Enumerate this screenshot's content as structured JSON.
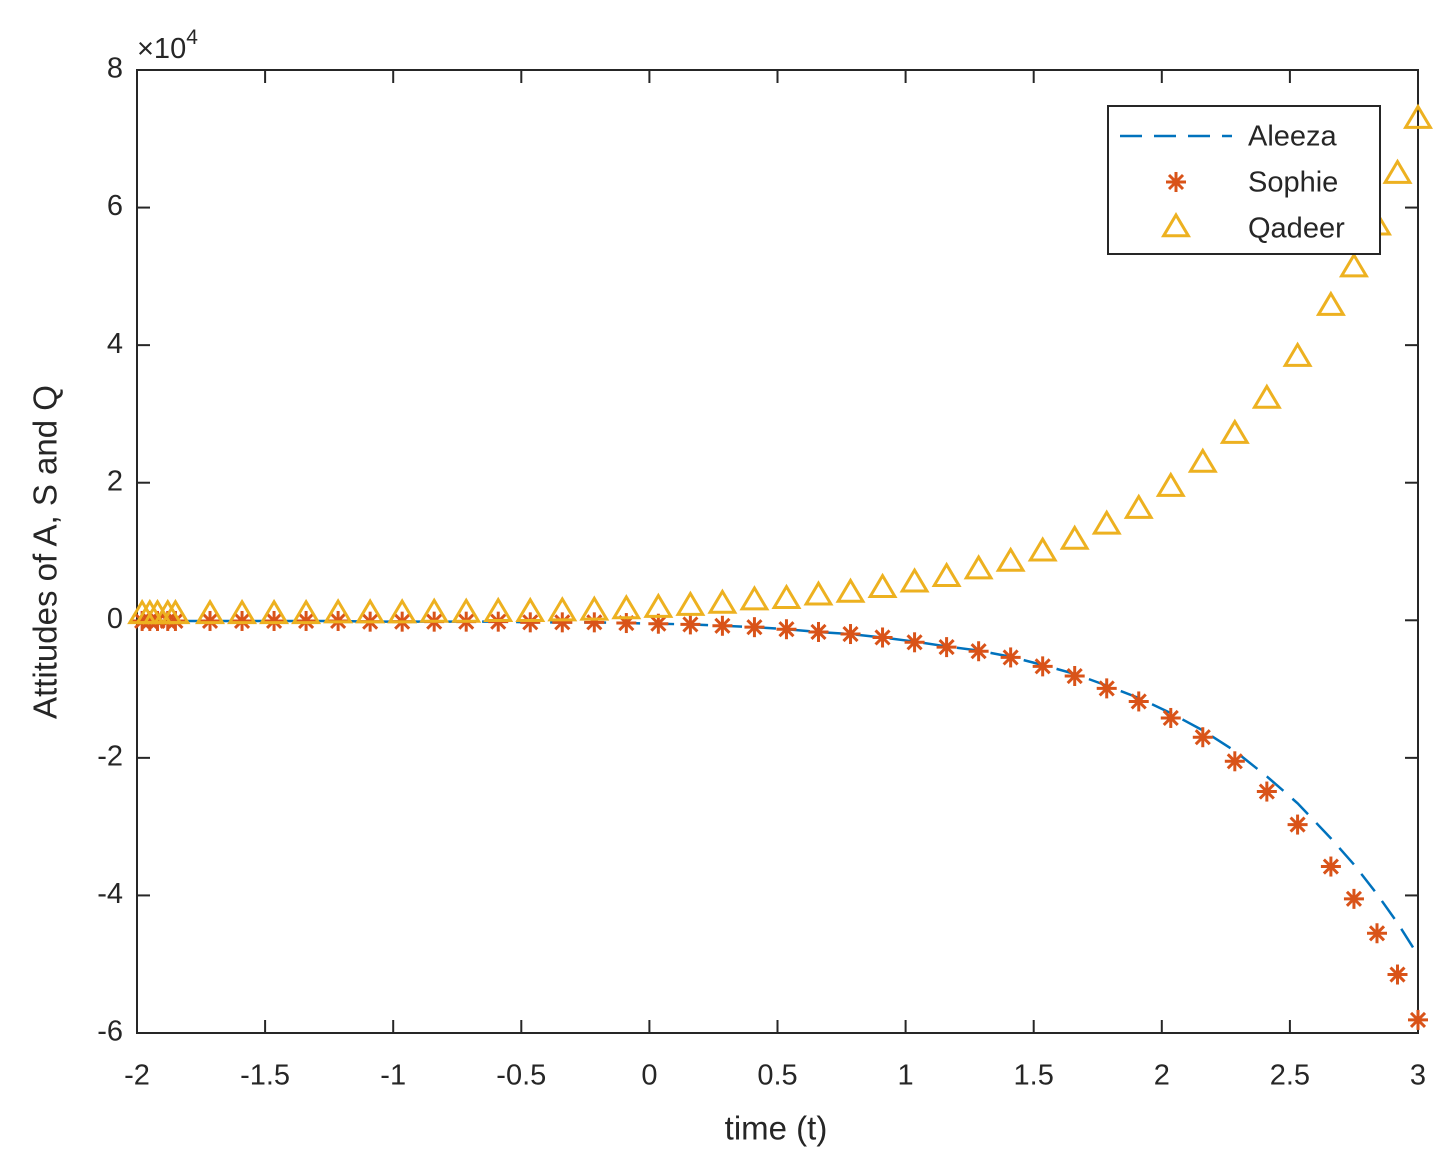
{
  "chart_data": {
    "type": "line",
    "xlabel": "time (t)",
    "ylabel": "Attitudes of A, S and Q",
    "y_multiplier": {
      "base": "×10",
      "exponent": "4"
    },
    "x": [
      -1.98,
      -1.95,
      -1.92,
      -1.88,
      -1.85,
      -1.715,
      -1.59,
      -1.465,
      -1.34,
      -1.215,
      -1.09,
      -0.965,
      -0.84,
      -0.715,
      -0.59,
      -0.465,
      -0.34,
      -0.215,
      -0.09,
      0.035,
      0.16,
      0.285,
      0.41,
      0.535,
      0.66,
      0.785,
      0.91,
      1.035,
      1.16,
      1.285,
      1.41,
      1.535,
      1.66,
      1.785,
      1.91,
      2.035,
      2.16,
      2.285,
      2.41,
      2.53,
      2.66,
      2.75,
      2.84,
      2.92,
      3.0
    ],
    "series": [
      {
        "name": "Aleeza",
        "color": "#0072BD",
        "marker": "none",
        "line_style": "dashed",
        "values": [
          -0.01,
          -0.01,
          -0.01,
          -0.01,
          -0.01,
          -0.01,
          -0.01,
          -0.01,
          -0.01,
          -0.01,
          -0.02,
          -0.02,
          -0.02,
          -0.02,
          -0.02,
          -0.03,
          -0.03,
          -0.03,
          -0.04,
          -0.05,
          -0.06,
          -0.08,
          -0.1,
          -0.13,
          -0.17,
          -0.2,
          -0.25,
          -0.31,
          -0.38,
          -0.44,
          -0.53,
          -0.65,
          -0.78,
          -0.95,
          -1.13,
          -1.35,
          -1.6,
          -1.9,
          -2.27,
          -2.66,
          -3.17,
          -3.55,
          -3.98,
          -4.4,
          -4.87
        ]
      },
      {
        "name": "Sophie",
        "color": "#D95319",
        "marker": "asterisk",
        "line_style": "none",
        "values": [
          -0.01,
          -0.01,
          -0.01,
          -0.01,
          -0.01,
          -0.01,
          -0.01,
          -0.01,
          -0.01,
          -0.01,
          -0.02,
          -0.02,
          -0.02,
          -0.02,
          -0.02,
          -0.03,
          -0.03,
          -0.03,
          -0.04,
          -0.05,
          -0.06,
          -0.08,
          -0.1,
          -0.13,
          -0.17,
          -0.2,
          -0.25,
          -0.32,
          -0.39,
          -0.45,
          -0.54,
          -0.67,
          -0.81,
          -0.99,
          -1.18,
          -1.42,
          -1.7,
          -2.05,
          -2.49,
          -2.97,
          -3.58,
          -4.05,
          -4.55,
          -5.15,
          -5.81
        ]
      },
      {
        "name": "Qadeer",
        "color": "#EDB120",
        "marker": "triangle",
        "line_style": "none",
        "values": [
          0.08,
          0.08,
          0.08,
          0.08,
          0.08,
          0.08,
          0.08,
          0.08,
          0.08,
          0.09,
          0.09,
          0.09,
          0.1,
          0.1,
          0.11,
          0.11,
          0.12,
          0.13,
          0.15,
          0.17,
          0.2,
          0.23,
          0.28,
          0.3,
          0.35,
          0.39,
          0.46,
          0.54,
          0.62,
          0.73,
          0.84,
          0.99,
          1.16,
          1.38,
          1.61,
          1.93,
          2.28,
          2.7,
          3.21,
          3.82,
          4.56,
          5.12,
          5.73,
          6.48,
          7.28
        ]
      }
    ],
    "xlim": [
      -2,
      3
    ],
    "xticks": [
      -2,
      -1.5,
      -1,
      -0.5,
      0,
      0.5,
      1,
      1.5,
      2,
      2.5,
      3
    ],
    "ylim": [
      -6,
      8
    ],
    "yticks": [
      -6,
      -4,
      -2,
      0,
      2,
      4,
      6,
      8
    ],
    "grid": false,
    "legend": "northeast"
  }
}
